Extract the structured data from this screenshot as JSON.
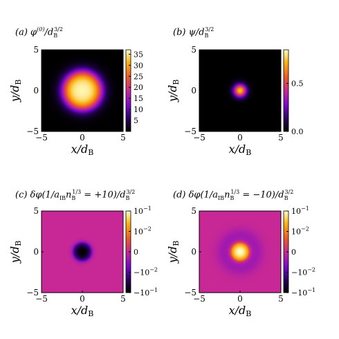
{
  "chart_data": [
    {
      "panel": "a",
      "type": "heatmap",
      "title": "(a) φ^(0)/d_B^3/2",
      "xlabel": "x/d_B",
      "ylabel": "y/d_B",
      "xlim": [
        -5,
        5
      ],
      "ylim": [
        -5,
        5
      ],
      "xticks": [
        "−5",
        "0",
        "5"
      ],
      "yticks": [
        "5",
        "0",
        "−5"
      ],
      "colorscale": "linear",
      "cmin": 0,
      "cmax": 37,
      "colorbar_ticks": [
        {
          "label": "35",
          "value": 35
        },
        {
          "label": "30",
          "value": 30
        },
        {
          "label": "25",
          "value": 25
        },
        {
          "label": "20",
          "value": 20
        },
        {
          "label": "15",
          "value": 15
        },
        {
          "label": "10",
          "value": 10
        },
        {
          "label": "5",
          "value": 5
        }
      ],
      "field": {
        "shape": "flat-top",
        "peak": 36.5,
        "core_radius": 2.3,
        "decay_width": 0.75
      }
    },
    {
      "panel": "b",
      "type": "heatmap",
      "title": "(b) ψ/d_B^3/2",
      "xlabel": "x/d_B",
      "ylabel": "y/d_B",
      "xlim": [
        -5,
        5
      ],
      "ylim": [
        -5,
        5
      ],
      "xticks": [
        "−5",
        "0",
        "5"
      ],
      "yticks": [
        "5",
        "0",
        "−5"
      ],
      "colorscale": "linear",
      "cmin": 0,
      "cmax": 0.85,
      "colorbar_ticks": [
        {
          "label": "0.5",
          "value": 0.5
        },
        {
          "label": "0.0",
          "value": 0.0
        }
      ],
      "field": {
        "shape": "gaussian",
        "peak": 0.75,
        "width": 0.55
      }
    },
    {
      "panel": "c",
      "type": "heatmap",
      "title": "(c) δφ(1/a_IB n_B^1/3 = +10)/d_B^3/2",
      "xlabel": "x/d_B",
      "ylabel": "y/d_B",
      "xlim": [
        -5,
        5
      ],
      "ylim": [
        -5,
        5
      ],
      "xticks": [
        "−5",
        "0",
        "5"
      ],
      "yticks": [
        "5",
        "0",
        "−5"
      ],
      "colorscale": "symlog",
      "cmin": -0.1,
      "cmax": 0.1,
      "linthresh": 0.01,
      "colorbar_ticks": [
        {
          "label": "10^−1",
          "value": 0.1
        },
        {
          "label": "10^−2",
          "value": 0.01
        },
        {
          "label": "0",
          "value": 0
        },
        {
          "label": "−10^−2",
          "value": -0.01
        },
        {
          "label": "−10^−1",
          "value": -0.1
        }
      ],
      "field": {
        "shape": "gaussian-dip",
        "peak": -0.1,
        "width": 0.5
      }
    },
    {
      "panel": "d",
      "type": "heatmap",
      "title": "(d) δφ(1/a_IB n_B^1/3 = −10)/d_B^3/2",
      "xlabel": "x/d_B",
      "ylabel": "y/d_B",
      "xlim": [
        -5,
        5
      ],
      "ylim": [
        -5,
        5
      ],
      "xticks": [
        "−5",
        "0",
        "5"
      ],
      "yticks": [
        "5",
        "0",
        "−5"
      ],
      "colorscale": "symlog",
      "cmin": -0.1,
      "cmax": 0.1,
      "linthresh": 0.01,
      "colorbar_ticks": [
        {
          "label": "10^−1",
          "value": 0.1
        },
        {
          "label": "10^−2",
          "value": 0.01
        },
        {
          "label": "0",
          "value": 0
        },
        {
          "label": "−10^−2",
          "value": -0.01
        },
        {
          "label": "−10^−1",
          "value": -0.1
        }
      ],
      "field": {
        "shape": "bump-with-halo",
        "peak": 0.1,
        "width": 0.5,
        "halo_value": -0.0045,
        "halo_radius": 2.6
      }
    }
  ]
}
